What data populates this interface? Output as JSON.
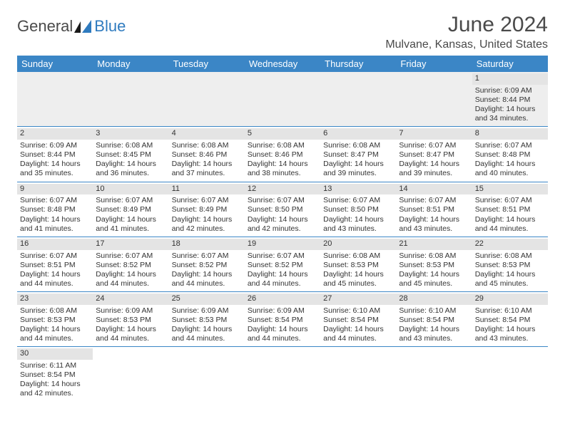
{
  "logo": {
    "part1": "General",
    "part2": "Blue"
  },
  "title": "June 2024",
  "location": "Mulvane, Kansas, United States",
  "colors": {
    "header_bg": "#3b86c6",
    "header_fg": "#ffffff",
    "daynum_bg": "#e4e4e4",
    "row_border": "#3b86c6",
    "empty_bg": "#eeeeee",
    "logo_blue": "#2f7bbf",
    "text": "#333333"
  },
  "weekdays": [
    "Sunday",
    "Monday",
    "Tuesday",
    "Wednesday",
    "Thursday",
    "Friday",
    "Saturday"
  ],
  "weeks": [
    [
      null,
      null,
      null,
      null,
      null,
      null,
      {
        "n": "1",
        "sr": "Sunrise: 6:09 AM",
        "ss": "Sunset: 8:44 PM",
        "dl1": "Daylight: 14 hours",
        "dl2": "and 34 minutes."
      }
    ],
    [
      {
        "n": "2",
        "sr": "Sunrise: 6:09 AM",
        "ss": "Sunset: 8:44 PM",
        "dl1": "Daylight: 14 hours",
        "dl2": "and 35 minutes."
      },
      {
        "n": "3",
        "sr": "Sunrise: 6:08 AM",
        "ss": "Sunset: 8:45 PM",
        "dl1": "Daylight: 14 hours",
        "dl2": "and 36 minutes."
      },
      {
        "n": "4",
        "sr": "Sunrise: 6:08 AM",
        "ss": "Sunset: 8:46 PM",
        "dl1": "Daylight: 14 hours",
        "dl2": "and 37 minutes."
      },
      {
        "n": "5",
        "sr": "Sunrise: 6:08 AM",
        "ss": "Sunset: 8:46 PM",
        "dl1": "Daylight: 14 hours",
        "dl2": "and 38 minutes."
      },
      {
        "n": "6",
        "sr": "Sunrise: 6:08 AM",
        "ss": "Sunset: 8:47 PM",
        "dl1": "Daylight: 14 hours",
        "dl2": "and 39 minutes."
      },
      {
        "n": "7",
        "sr": "Sunrise: 6:07 AM",
        "ss": "Sunset: 8:47 PM",
        "dl1": "Daylight: 14 hours",
        "dl2": "and 39 minutes."
      },
      {
        "n": "8",
        "sr": "Sunrise: 6:07 AM",
        "ss": "Sunset: 8:48 PM",
        "dl1": "Daylight: 14 hours",
        "dl2": "and 40 minutes."
      }
    ],
    [
      {
        "n": "9",
        "sr": "Sunrise: 6:07 AM",
        "ss": "Sunset: 8:48 PM",
        "dl1": "Daylight: 14 hours",
        "dl2": "and 41 minutes."
      },
      {
        "n": "10",
        "sr": "Sunrise: 6:07 AM",
        "ss": "Sunset: 8:49 PM",
        "dl1": "Daylight: 14 hours",
        "dl2": "and 41 minutes."
      },
      {
        "n": "11",
        "sr": "Sunrise: 6:07 AM",
        "ss": "Sunset: 8:49 PM",
        "dl1": "Daylight: 14 hours",
        "dl2": "and 42 minutes."
      },
      {
        "n": "12",
        "sr": "Sunrise: 6:07 AM",
        "ss": "Sunset: 8:50 PM",
        "dl1": "Daylight: 14 hours",
        "dl2": "and 42 minutes."
      },
      {
        "n": "13",
        "sr": "Sunrise: 6:07 AM",
        "ss": "Sunset: 8:50 PM",
        "dl1": "Daylight: 14 hours",
        "dl2": "and 43 minutes."
      },
      {
        "n": "14",
        "sr": "Sunrise: 6:07 AM",
        "ss": "Sunset: 8:51 PM",
        "dl1": "Daylight: 14 hours",
        "dl2": "and 43 minutes."
      },
      {
        "n": "15",
        "sr": "Sunrise: 6:07 AM",
        "ss": "Sunset: 8:51 PM",
        "dl1": "Daylight: 14 hours",
        "dl2": "and 44 minutes."
      }
    ],
    [
      {
        "n": "16",
        "sr": "Sunrise: 6:07 AM",
        "ss": "Sunset: 8:51 PM",
        "dl1": "Daylight: 14 hours",
        "dl2": "and 44 minutes."
      },
      {
        "n": "17",
        "sr": "Sunrise: 6:07 AM",
        "ss": "Sunset: 8:52 PM",
        "dl1": "Daylight: 14 hours",
        "dl2": "and 44 minutes."
      },
      {
        "n": "18",
        "sr": "Sunrise: 6:07 AM",
        "ss": "Sunset: 8:52 PM",
        "dl1": "Daylight: 14 hours",
        "dl2": "and 44 minutes."
      },
      {
        "n": "19",
        "sr": "Sunrise: 6:07 AM",
        "ss": "Sunset: 8:52 PM",
        "dl1": "Daylight: 14 hours",
        "dl2": "and 44 minutes."
      },
      {
        "n": "20",
        "sr": "Sunrise: 6:08 AM",
        "ss": "Sunset: 8:53 PM",
        "dl1": "Daylight: 14 hours",
        "dl2": "and 45 minutes."
      },
      {
        "n": "21",
        "sr": "Sunrise: 6:08 AM",
        "ss": "Sunset: 8:53 PM",
        "dl1": "Daylight: 14 hours",
        "dl2": "and 45 minutes."
      },
      {
        "n": "22",
        "sr": "Sunrise: 6:08 AM",
        "ss": "Sunset: 8:53 PM",
        "dl1": "Daylight: 14 hours",
        "dl2": "and 45 minutes."
      }
    ],
    [
      {
        "n": "23",
        "sr": "Sunrise: 6:08 AM",
        "ss": "Sunset: 8:53 PM",
        "dl1": "Daylight: 14 hours",
        "dl2": "and 44 minutes."
      },
      {
        "n": "24",
        "sr": "Sunrise: 6:09 AM",
        "ss": "Sunset: 8:53 PM",
        "dl1": "Daylight: 14 hours",
        "dl2": "and 44 minutes."
      },
      {
        "n": "25",
        "sr": "Sunrise: 6:09 AM",
        "ss": "Sunset: 8:53 PM",
        "dl1": "Daylight: 14 hours",
        "dl2": "and 44 minutes."
      },
      {
        "n": "26",
        "sr": "Sunrise: 6:09 AM",
        "ss": "Sunset: 8:54 PM",
        "dl1": "Daylight: 14 hours",
        "dl2": "and 44 minutes."
      },
      {
        "n": "27",
        "sr": "Sunrise: 6:10 AM",
        "ss": "Sunset: 8:54 PM",
        "dl1": "Daylight: 14 hours",
        "dl2": "and 44 minutes."
      },
      {
        "n": "28",
        "sr": "Sunrise: 6:10 AM",
        "ss": "Sunset: 8:54 PM",
        "dl1": "Daylight: 14 hours",
        "dl2": "and 43 minutes."
      },
      {
        "n": "29",
        "sr": "Sunrise: 6:10 AM",
        "ss": "Sunset: 8:54 PM",
        "dl1": "Daylight: 14 hours",
        "dl2": "and 43 minutes."
      }
    ],
    [
      {
        "n": "30",
        "sr": "Sunrise: 6:11 AM",
        "ss": "Sunset: 8:54 PM",
        "dl1": "Daylight: 14 hours",
        "dl2": "and 42 minutes."
      },
      null,
      null,
      null,
      null,
      null,
      null
    ]
  ]
}
